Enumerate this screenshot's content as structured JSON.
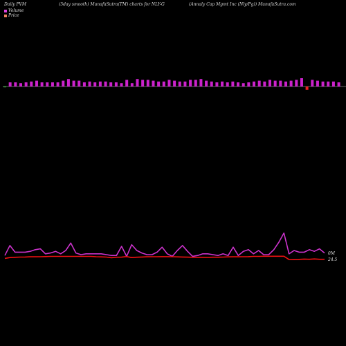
{
  "header": {
    "left": "Daily PVM",
    "center": "(5day smooth) MunafaSutra(TM) charts for NLY-G",
    "right": "(Annaly Cap Mgmt Inc (Nly/Pg)) MunafaSutra.com"
  },
  "legend": [
    {
      "label": "Volume",
      "color": "#e040e0"
    },
    {
      "label": "Price",
      "color": "#f08060"
    }
  ],
  "colors": {
    "volume_up": "#cc22cc",
    "volume_down": "#ee2020",
    "volume_neutral": "#33aa33",
    "baseline": "#888888",
    "volume_line": "#cc33cc",
    "price_line": "#ee1111",
    "background": "#000000"
  },
  "chart_data": [
    {
      "type": "bar",
      "title": "Volume",
      "values": [
        -1,
        5,
        5,
        4,
        5,
        6,
        7,
        5,
        5,
        5,
        5,
        7,
        9,
        7,
        7,
        5,
        6,
        5,
        6,
        6,
        5,
        5,
        4,
        8,
        4,
        9,
        8,
        8,
        7,
        6,
        6,
        8,
        7,
        6,
        6,
        8,
        8,
        9,
        7,
        6,
        5,
        6,
        5,
        6,
        5,
        4,
        5,
        6,
        7,
        6,
        8,
        7,
        7,
        6,
        7,
        8,
        10,
        -4,
        8,
        7,
        6,
        6,
        6,
        5
      ],
      "negative_indices_color": "volume_down",
      "first_bar_color": "volume_neutral"
    },
    {
      "type": "line",
      "series": [
        {
          "name": "Volume",
          "values": [
            4,
            16,
            8,
            8,
            8,
            9,
            11,
            12,
            6,
            7,
            9,
            6,
            10,
            19,
            7,
            5,
            6,
            6,
            6,
            6,
            5,
            4,
            4,
            15,
            3,
            17,
            10,
            7,
            5,
            5,
            8,
            14,
            6,
            3,
            10,
            16,
            9,
            3,
            4,
            6,
            6,
            5,
            4,
            6,
            4,
            14,
            4,
            9,
            11,
            6,
            10,
            5,
            5,
            11,
            20,
            31,
            6,
            10,
            8,
            8,
            11,
            9,
            12,
            7
          ]
        },
        {
          "name": "Price",
          "values": [
            3.0,
            4.0,
            4.3,
            4.6,
            4.7,
            4.9,
            4.9,
            5.0,
            5.2,
            5.4,
            5.4,
            5.4,
            5.4,
            5.4,
            5.4,
            5.4,
            5.4,
            5.4,
            5.0,
            4.8,
            4.6,
            3.8,
            4.4,
            4.5,
            5.2,
            4.0,
            4.4,
            4.7,
            4.9,
            5.0,
            5.0,
            5.1,
            5.1,
            5.0,
            4.8,
            4.7,
            4.5,
            4.3,
            4.3,
            4.3,
            4.2,
            4.4,
            4.4,
            4.6,
            4.8,
            4.9,
            4.9,
            5.0,
            5.1,
            5.4,
            5.4,
            5.6,
            5.6,
            5.6,
            5.6,
            5.6,
            1.6,
            1.5,
            1.8,
            2.2,
            1.9,
            2.3,
            1.9,
            1.9
          ]
        }
      ],
      "end_labels": [
        "0M",
        "24.5"
      ]
    }
  ]
}
